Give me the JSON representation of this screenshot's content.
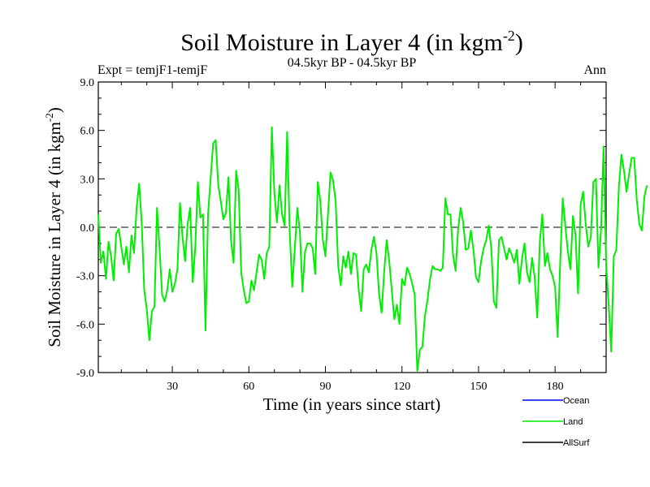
{
  "chart_data": {
    "type": "line",
    "title_main": "Soil Moisture in Layer 4 (in kgm",
    "title_sup": "-2",
    "title_close": ")",
    "subtitle_left": "Expt = temjF1-temjF",
    "subtitle_center": "04.5kyr BP - 04.5kyr BP",
    "subtitle_right": "Ann",
    "xlabel": "Time (in years since start)",
    "ylabel_main": "Soil Moisture in Layer 4 (in kgm",
    "ylabel_sup": "-2",
    "ylabel_close": ")",
    "xlim": [
      1,
      200
    ],
    "ylim": [
      -9,
      9
    ],
    "xticks": [
      30,
      60,
      90,
      120,
      150,
      180
    ],
    "xtick_labels": [
      "30",
      "60",
      "90",
      "120",
      "150",
      "180"
    ],
    "yticks": [
      -9,
      -6,
      -3,
      0,
      3,
      6,
      9
    ],
    "ytick_labels": [
      "-9.0",
      "-6.0",
      "-3.0",
      "0.0",
      "3.0",
      "6.0",
      "9.0"
    ],
    "zero_line": true,
    "legend": [
      {
        "name": "Ocean",
        "color": "#0000ff"
      },
      {
        "name": "Land",
        "color": "#00ee00"
      },
      {
        "name": "AllSurf",
        "color": "#000000"
      }
    ],
    "series": [
      {
        "name": "Land",
        "color": "#00ee00",
        "x_start": 1,
        "x_step": 1,
        "values": [
          0.8,
          -2.2,
          -1.5,
          -3.2,
          -0.9,
          -1.8,
          -3.3,
          -0.4,
          -0.1,
          -1.2,
          -2.3,
          -1.2,
          -2.8,
          -0.5,
          -1.6,
          1.2,
          2.7,
          0.3,
          -3.9,
          -5.1,
          -7.0,
          -5.2,
          -4.9,
          1.2,
          -1.3,
          -4.2,
          -4.6,
          -3.9,
          -2.6,
          -4.0,
          -3.5,
          -2.6,
          1.5,
          -0.6,
          -2.1,
          0.2,
          1.2,
          -3.4,
          -1.2,
          2.8,
          0.6,
          0.8,
          -6.4,
          0.8,
          3.0,
          5.2,
          5.4,
          2.6,
          1.6,
          0.5,
          0.9,
          3.1,
          -0.8,
          -2.2,
          3.5,
          2.3,
          -2.8,
          -3.9,
          -4.7,
          -4.6,
          -3.3,
          -3.9,
          -2.8,
          -1.7,
          -2.0,
          -3.2,
          -1.6,
          -1.2,
          6.2,
          2.1,
          0.3,
          2.6,
          0.8,
          0.1,
          5.9,
          -0.3,
          -3.7,
          -1.3,
          1.2,
          -0.3,
          -4.0,
          -1.5,
          -1.0,
          -1.0,
          -1.3,
          -2.9,
          2.8,
          1.6,
          -0.8,
          -1.8,
          0.8,
          3.4,
          2.9,
          1.6,
          -2.4,
          -3.6,
          -1.8,
          -2.5,
          -1.5,
          -2.9,
          -1.6,
          -1.7,
          -3.8,
          -5.2,
          -2.6,
          -2.3,
          -2.8,
          -1.4,
          -0.6,
          -1.6,
          -4.1,
          -5.3,
          -2.8,
          -0.8,
          -2.1,
          -3.9,
          -5.7,
          -4.8,
          -6.0,
          -3.2,
          -3.6,
          -2.5,
          -2.9,
          -3.5,
          -4.2,
          -8.9,
          -7.6,
          -7.4,
          -5.5,
          -4.5,
          -3.2,
          -2.4,
          -2.6,
          -2.6,
          -2.7,
          -2.5,
          1.8,
          0.8,
          0.8,
          -1.7,
          -2.7,
          -0.1,
          1.2,
          0.3,
          -1.4,
          -1.3,
          -0.2,
          -1.4,
          -3.1,
          -3.4,
          -2.1,
          -1.3,
          -0.8,
          0.1,
          -1.3,
          -4.6,
          -5.0,
          -0.8,
          -0.6,
          -1.3,
          -2.0,
          -1.3,
          -1.7,
          -2.2,
          -1.4,
          -3.5,
          -2.0,
          -1.0,
          -2.8,
          -3.4,
          -1.9,
          -3.1,
          -5.6,
          -0.9,
          0.8,
          -2.4,
          -1.6,
          -2.6,
          -3.0,
          -3.7,
          -6.8,
          -2.2,
          1.8,
          0.1,
          -1.5,
          -2.6,
          0.7,
          -0.5,
          -4.1,
          1.4,
          2.2,
          0.2,
          -1.2,
          -0.6,
          2.8,
          3.0,
          -2.5,
          -0.2,
          5.0,
          -2.3,
          -4.8,
          -7.7,
          -1.8,
          -1.4,
          2.5,
          4.5,
          3.5,
          2.2,
          3.3,
          4.3,
          4.3,
          1.7,
          0.2,
          -0.2,
          1.9,
          2.6
        ]
      }
    ]
  }
}
